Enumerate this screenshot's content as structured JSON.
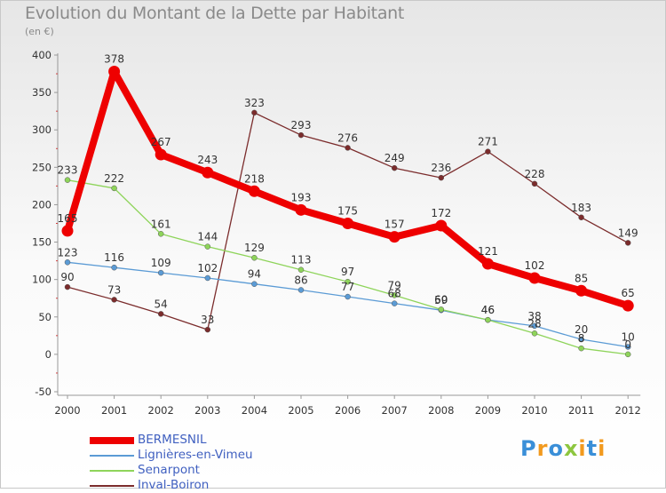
{
  "chart_data": {
    "type": "line",
    "title": "Evolution du Montant de la Dette par Habitant",
    "subtitle": "(en €)",
    "x": [
      "2000",
      "2001",
      "2002",
      "2003",
      "2004",
      "2005",
      "2006",
      "2007",
      "2008",
      "2009",
      "2010",
      "2011",
      "2012"
    ],
    "yticks": [
      "400",
      "350",
      "300",
      "250",
      "200",
      "150",
      "100",
      "50",
      "0",
      "-50"
    ],
    "ylim": [
      -50,
      400
    ],
    "grid": false,
    "legend_position": "bottom-left",
    "series": [
      {
        "name": "BERMESNIL",
        "color": "#ee0000",
        "values": [
          165,
          378,
          267,
          243,
          218,
          193,
          175,
          157,
          172,
          121,
          102,
          85,
          65
        ],
        "labels": [
          "165",
          "378",
          "267",
          "243",
          "218",
          "193",
          "175",
          "157",
          "172",
          "121",
          "102",
          "85",
          "65"
        ]
      },
      {
        "name": "Lignières-en-Vimeu",
        "color": "#5b9bd5",
        "values": [
          123,
          116,
          109,
          102,
          94,
          86,
          77,
          68,
          59,
          46,
          38,
          20,
          10
        ],
        "labels": [
          "123",
          "116",
          "109",
          "102",
          "94",
          "86",
          "77",
          "68",
          "59",
          "46",
          "38",
          "20",
          "10"
        ]
      },
      {
        "name": "Senarpont",
        "color": "#8ed45a",
        "values": [
          233,
          222,
          161,
          144,
          129,
          113,
          97,
          79,
          60,
          46,
          28,
          8,
          0
        ],
        "labels": [
          "233",
          "222",
          "161",
          "144",
          "129",
          "113",
          "97",
          "79",
          "60",
          "46",
          "28",
          "8",
          "0"
        ]
      },
      {
        "name": "Inval-Boiron",
        "color": "#7b2c2c",
        "values": [
          90,
          73,
          54,
          33,
          323,
          293,
          276,
          249,
          236,
          271,
          228,
          183,
          149
        ],
        "labels": [
          "90",
          "73",
          "54",
          "33",
          "323",
          "293",
          "276",
          "249",
          "236",
          "271",
          "228",
          "183",
          "149"
        ]
      }
    ]
  },
  "logo": {
    "letters": [
      "P",
      "r",
      "o",
      "x",
      "i",
      "t",
      "i"
    ],
    "colors": [
      "#3a8fd8",
      "#f29a1e",
      "#3a8fd8",
      "#8dc63f",
      "#f29a1e",
      "#3a8fd8",
      "#f29a1e"
    ]
  }
}
